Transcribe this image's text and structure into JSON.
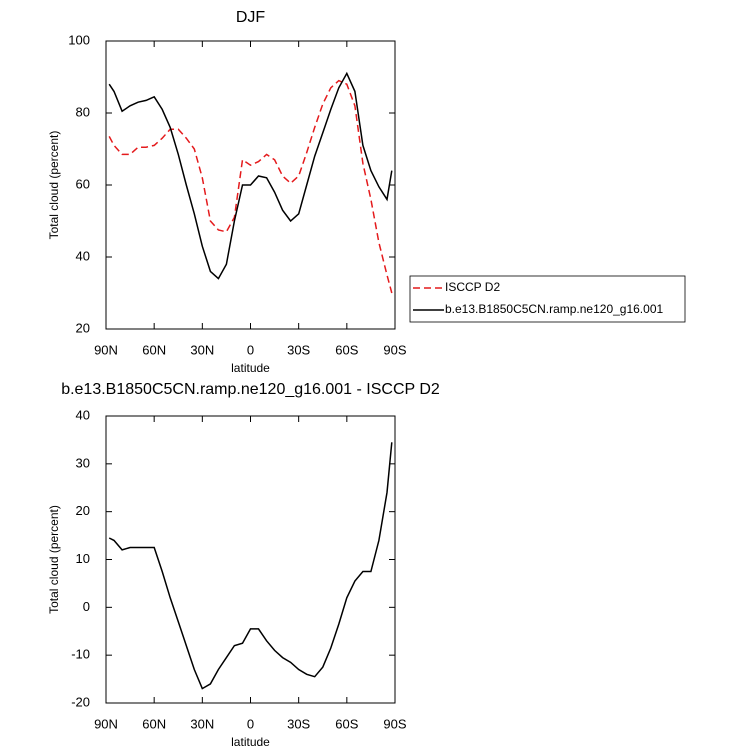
{
  "chart_data": [
    {
      "type": "line",
      "title": "DJF",
      "xlabel": "latitude",
      "ylabel": "Total cloud (percent)",
      "x": [
        88,
        85,
        80,
        75,
        70,
        65,
        60,
        55,
        50,
        45,
        40,
        35,
        30,
        25,
        20,
        15,
        10,
        5,
        0,
        -5,
        -10,
        -15,
        -20,
        -25,
        -30,
        -35,
        -40,
        -45,
        -50,
        -55,
        -60,
        -65,
        -70,
        -75,
        -80,
        -85,
        -88
      ],
      "xlim": [
        90,
        -90
      ],
      "xticks": [
        {
          "value": 90,
          "label": "90N"
        },
        {
          "value": 60,
          "label": "60N"
        },
        {
          "value": 30,
          "label": "30N"
        },
        0,
        {
          "value": -30,
          "label": "30S"
        },
        {
          "value": -60,
          "label": "60S"
        },
        {
          "value": -90,
          "label": "90S"
        }
      ],
      "ylim": [
        20,
        100
      ],
      "yticks": [
        20,
        40,
        60,
        80,
        100
      ],
      "legend": "right",
      "series": [
        {
          "name": "ISCCP D2",
          "color": "#e41a1c",
          "line_style": "dashed",
          "values": [
            73.5,
            71,
            68.5,
            68.5,
            70.5,
            70.5,
            71,
            73,
            75.5,
            75.5,
            73,
            70,
            62,
            50,
            47.5,
            47,
            51,
            67,
            65.5,
            66.5,
            68.5,
            67,
            62.5,
            60.5,
            62.5,
            69,
            76,
            82.5,
            87,
            89,
            88,
            82,
            66,
            56,
            44,
            35,
            30
          ]
        },
        {
          "name": "b.e13.B1850C5CN.ramp.ne120_g16.001",
          "color": "#000000",
          "line_style": "solid",
          "values": [
            88,
            86,
            80.5,
            82,
            83,
            83.5,
            84.5,
            81,
            76,
            68.5,
            60,
            52,
            43,
            36,
            34,
            38,
            50,
            60,
            60,
            62.5,
            62,
            58,
            53,
            50,
            52,
            60,
            68,
            74.5,
            81,
            87,
            91,
            86,
            71,
            64,
            59.5,
            56,
            64
          ]
        }
      ]
    },
    {
      "type": "line",
      "title": "b.e13.B1850C5CN.ramp.ne120_g16.001 - ISCCP D2",
      "xlabel": "latitude",
      "ylabel": "Total cloud (percent)",
      "x": [
        88,
        85,
        80,
        75,
        70,
        65,
        60,
        55,
        50,
        45,
        40,
        35,
        30,
        25,
        20,
        15,
        10,
        5,
        0,
        -5,
        -10,
        -15,
        -20,
        -25,
        -30,
        -35,
        -40,
        -45,
        -50,
        -55,
        -60,
        -65,
        -70,
        -75,
        -80,
        -85,
        -88
      ],
      "xlim": [
        90,
        -90
      ],
      "xticks": [
        {
          "value": 90,
          "label": "90N"
        },
        {
          "value": 60,
          "label": "60N"
        },
        {
          "value": 30,
          "label": "30N"
        },
        0,
        {
          "value": -30,
          "label": "30S"
        },
        {
          "value": -60,
          "label": "60S"
        },
        {
          "value": -90,
          "label": "90S"
        }
      ],
      "ylim": [
        -20,
        40
      ],
      "yticks": [
        -20,
        -10,
        0,
        10,
        20,
        30,
        40
      ],
      "color": "#000000",
      "line_style": "solid",
      "values": [
        14.5,
        14,
        12,
        12.5,
        12.5,
        12.5,
        12.5,
        7.5,
        2,
        -3,
        -8,
        -13,
        -17,
        -16,
        -13,
        -10.5,
        -8,
        -7.5,
        -4.5,
        -4.5,
        -7,
        -9,
        -10.5,
        -11.5,
        -13,
        -14,
        -14.5,
        -12.5,
        -8.5,
        -3.5,
        2,
        5.5,
        7.5,
        7.5,
        14,
        24,
        34.5
      ]
    }
  ]
}
